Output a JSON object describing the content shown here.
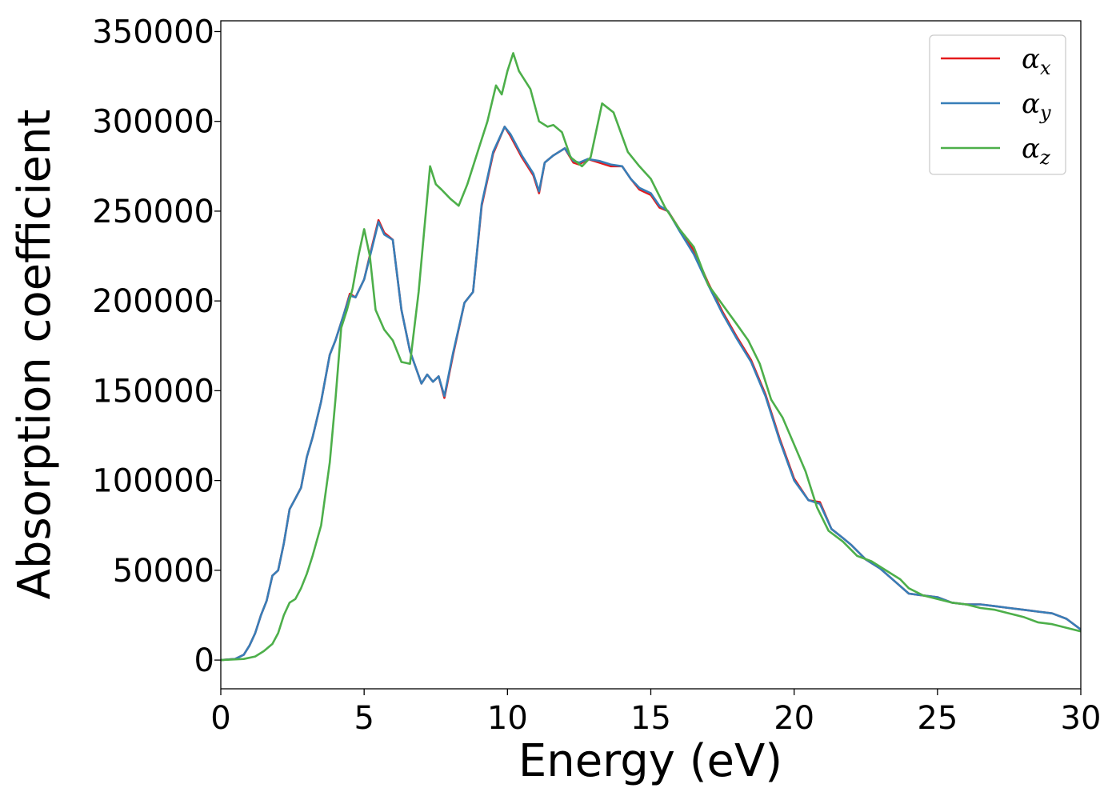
{
  "chart_data": {
    "type": "line",
    "xlabel": "Energy (eV)",
    "ylabel": "Absorption coefficient",
    "xlim": [
      0,
      30
    ],
    "ylim": [
      -16000,
      356000
    ],
    "xticks": [
      0,
      5,
      10,
      15,
      20,
      25,
      30
    ],
    "yticks": [
      0,
      50000,
      100000,
      150000,
      200000,
      250000,
      300000,
      350000
    ],
    "grid": false,
    "legend": {
      "position": "top-right"
    },
    "series": [
      {
        "name": "α",
        "subscript": "x",
        "color": "#e41a1c",
        "x": [
          0,
          0.5,
          0.8,
          1.0,
          1.2,
          1.4,
          1.6,
          1.8,
          2.0,
          2.2,
          2.4,
          2.6,
          2.8,
          3.0,
          3.2,
          3.5,
          3.8,
          4.0,
          4.3,
          4.5,
          4.7,
          5.0,
          5.3,
          5.5,
          5.7,
          6.0,
          6.3,
          6.6,
          7.0,
          7.2,
          7.4,
          7.6,
          7.8,
          8.1,
          8.5,
          8.8,
          9.1,
          9.5,
          9.9,
          10.1,
          10.5,
          10.9,
          11.1,
          11.3,
          11.6,
          12.0,
          12.3,
          12.5,
          12.8,
          13.2,
          13.6,
          14.0,
          14.3,
          14.6,
          15.0,
          15.3,
          15.6,
          16.0,
          16.5,
          17.0,
          17.5,
          18.0,
          18.5,
          19.0,
          19.5,
          20.0,
          20.5,
          20.9,
          21.3,
          21.7,
          22.0,
          22.5,
          23.0,
          23.5,
          24.0,
          24.5,
          25.0,
          25.5,
          26.0,
          26.5,
          27.0,
          27.5,
          28.0,
          28.5,
          29.0,
          29.5,
          30.0
        ],
        "y": [
          0,
          600,
          3000,
          8000,
          15000,
          25000,
          33000,
          47000,
          50000,
          65000,
          84000,
          90000,
          96000,
          113000,
          124000,
          144000,
          170000,
          178000,
          193000,
          204000,
          202000,
          212000,
          232000,
          245000,
          238000,
          234000,
          195000,
          172000,
          154000,
          159000,
          155000,
          158000,
          146000,
          170000,
          199000,
          205000,
          253000,
          282000,
          297000,
          292000,
          280000,
          270000,
          260000,
          277000,
          281000,
          285000,
          277000,
          276000,
          279000,
          277000,
          275000,
          275000,
          268000,
          262000,
          259000,
          252000,
          250000,
          240000,
          228000,
          210000,
          194000,
          180000,
          167000,
          148000,
          123000,
          101000,
          89000,
          88000,
          73000,
          68000,
          64000,
          56000,
          51000,
          44000,
          37000,
          36000,
          35000,
          32000,
          31000,
          31000,
          30000,
          29000,
          28000,
          27000,
          26000,
          23000,
          17000
        ]
      },
      {
        "name": "α",
        "subscript": "y",
        "color": "#377eb8",
        "x": [
          0,
          0.5,
          0.8,
          1.0,
          1.2,
          1.4,
          1.6,
          1.8,
          2.0,
          2.2,
          2.4,
          2.6,
          2.8,
          3.0,
          3.2,
          3.5,
          3.8,
          4.0,
          4.3,
          4.5,
          4.7,
          5.0,
          5.3,
          5.5,
          5.7,
          6.0,
          6.3,
          6.6,
          7.0,
          7.2,
          7.4,
          7.6,
          7.8,
          8.1,
          8.5,
          8.8,
          9.1,
          9.5,
          9.9,
          10.1,
          10.5,
          10.9,
          11.1,
          11.3,
          11.6,
          12.0,
          12.3,
          12.5,
          12.8,
          13.2,
          13.6,
          14.0,
          14.3,
          14.6,
          15.0,
          15.3,
          15.6,
          16.0,
          16.5,
          17.0,
          17.5,
          18.0,
          18.5,
          19.0,
          19.5,
          20.0,
          20.5,
          20.9,
          21.3,
          21.7,
          22.0,
          22.5,
          23.0,
          23.5,
          24.0,
          24.5,
          25.0,
          25.5,
          26.0,
          26.5,
          27.0,
          27.5,
          28.0,
          28.5,
          29.0,
          29.5,
          30.0
        ],
        "y": [
          0,
          600,
          3000,
          8000,
          15000,
          25000,
          33000,
          47000,
          50000,
          65000,
          84000,
          90000,
          96000,
          113000,
          124000,
          144000,
          170000,
          178000,
          193000,
          203000,
          202000,
          212000,
          231000,
          244000,
          237000,
          234000,
          195000,
          172000,
          154000,
          159000,
          155000,
          158000,
          147000,
          171000,
          199000,
          205000,
          254000,
          283000,
          297000,
          293000,
          281000,
          271000,
          261000,
          277000,
          281000,
          285000,
          278000,
          277000,
          279000,
          278000,
          276000,
          275000,
          268000,
          263000,
          260000,
          253000,
          250000,
          239000,
          226000,
          209000,
          193000,
          179000,
          166000,
          147000,
          122000,
          100000,
          89000,
          87000,
          73000,
          68000,
          64000,
          56000,
          51000,
          44000,
          37000,
          36000,
          35000,
          32000,
          31000,
          31000,
          30000,
          29000,
          28000,
          27000,
          26000,
          23000,
          17000
        ]
      },
      {
        "name": "α",
        "subscript": "z",
        "color": "#4daf4a",
        "x": [
          0,
          0.8,
          1.2,
          1.5,
          1.8,
          2.0,
          2.2,
          2.4,
          2.6,
          2.8,
          3.0,
          3.2,
          3.5,
          3.8,
          4.0,
          4.2,
          4.4,
          4.6,
          4.8,
          5.0,
          5.2,
          5.4,
          5.7,
          6.0,
          6.3,
          6.6,
          6.9,
          7.1,
          7.3,
          7.5,
          7.7,
          8.0,
          8.3,
          8.6,
          9.0,
          9.3,
          9.6,
          9.8,
          10.0,
          10.2,
          10.4,
          10.8,
          11.1,
          11.4,
          11.6,
          11.9,
          12.2,
          12.6,
          12.9,
          13.3,
          13.7,
          14.2,
          14.6,
          15.0,
          15.5,
          16.0,
          16.5,
          17.0,
          17.5,
          18.0,
          18.4,
          18.8,
          19.2,
          19.6,
          20.0,
          20.4,
          20.8,
          21.2,
          21.7,
          22.2,
          22.7,
          23.2,
          23.7,
          24.0,
          24.5,
          25.0,
          25.5,
          26.0,
          26.5,
          27.0,
          27.5,
          28.0,
          28.5,
          29.0,
          29.5,
          30.0
        ],
        "y": [
          0,
          600,
          2000,
          5000,
          9000,
          15000,
          25000,
          32000,
          34000,
          40000,
          48000,
          58000,
          75000,
          110000,
          145000,
          185000,
          195000,
          207000,
          225000,
          240000,
          225000,
          195000,
          184000,
          178000,
          166000,
          165000,
          205000,
          240000,
          275000,
          265000,
          262000,
          257000,
          253000,
          265000,
          285000,
          300000,
          320000,
          315000,
          328000,
          338000,
          328000,
          318000,
          300000,
          297000,
          298000,
          294000,
          280000,
          275000,
          280000,
          310000,
          305000,
          283000,
          275000,
          268000,
          252000,
          240000,
          230000,
          209000,
          198000,
          187000,
          178000,
          165000,
          145000,
          135000,
          120000,
          105000,
          85000,
          72000,
          66000,
          58000,
          55000,
          50000,
          45000,
          40000,
          36000,
          34000,
          32000,
          31000,
          29000,
          28000,
          26000,
          24000,
          21000,
          20000,
          18000,
          16000
        ]
      }
    ]
  }
}
